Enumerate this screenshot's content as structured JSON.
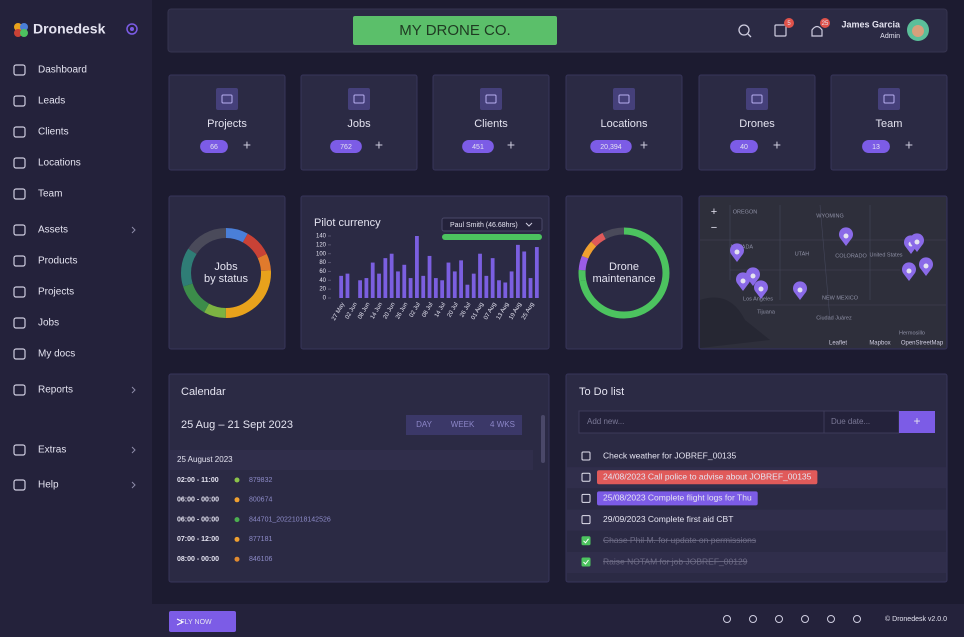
{
  "sidebar": {
    "brand": "Dronedesk",
    "menu": [
      {
        "label": "Dashboard"
      },
      {
        "label": "Leads"
      },
      {
        "label": "Clients"
      },
      {
        "label": "Locations"
      },
      {
        "label": "Team"
      },
      {
        "label": "Assets",
        "submenu": true
      },
      {
        "label": "Products"
      },
      {
        "label": "Projects"
      },
      {
        "label": "Jobs"
      },
      {
        "label": "My docs"
      },
      {
        "label": "Reports",
        "submenu": true
      },
      {
        "label": "Extras",
        "submenu": true
      },
      {
        "label": "Help",
        "submenu": true
      }
    ]
  },
  "header": {
    "company": "MY DRONE CO.",
    "user_name": "James Garcia",
    "user_role": "Admin",
    "badges": [
      5,
      25
    ]
  },
  "stats": [
    {
      "label": "Projects",
      "count": 66,
      "action": "+"
    },
    {
      "label": "Jobs",
      "count": 762,
      "action": "+"
    },
    {
      "label": "Clients",
      "count": 451,
      "action": "+"
    },
    {
      "label": "Locations",
      "count": 20394,
      "count_label": "20,394",
      "action": "+"
    },
    {
      "label": "Drones",
      "count": 40,
      "action": "+"
    },
    {
      "label": "Team",
      "count": 13,
      "action": "+"
    }
  ],
  "jobs_donut": {
    "type": "pie",
    "title": [
      "Jobs",
      "by status"
    ],
    "values": [
      8,
      10,
      6,
      26,
      8,
      12,
      14,
      16
    ],
    "colors": [
      "#4a7fd8",
      "#c94236",
      "#e07a2c",
      "#e8a21c",
      "#7cb342",
      "#3c8c4a",
      "#2f7d76",
      "#4a4a5a"
    ]
  },
  "pilot_currency": {
    "type": "bar",
    "title": "Pilot currency",
    "selector": "Paul Smith (46.68hrs)",
    "color": "#7b5fe0",
    "categories": [
      "27 May",
      null,
      "02 Jun",
      null,
      "08 Jun",
      null,
      "14 Jun",
      null,
      "20 Jun",
      null,
      "26 Jun",
      null,
      "02 Jul",
      null,
      "08 Jul",
      null,
      "14 Jul",
      null,
      "20 Jul",
      null,
      "26 Jul",
      null,
      "01 Aug",
      null,
      "07 Aug",
      null,
      "13 Aug",
      null,
      "19 Aug",
      null,
      "25 Aug",
      null
    ],
    "values": [
      50,
      55,
      0,
      40,
      45,
      80,
      55,
      90,
      100,
      60,
      75,
      45,
      140,
      50,
      95,
      45,
      40,
      80,
      60,
      85,
      30,
      55,
      100,
      50,
      90,
      40,
      35,
      60,
      120,
      105,
      45,
      115
    ],
    "ylim": [
      0,
      140
    ],
    "yticks": [
      0,
      20,
      40,
      60,
      80,
      100,
      120,
      140
    ]
  },
  "drone_maintenance": {
    "type": "pie",
    "title": [
      "Drone",
      "maintenance"
    ],
    "values": [
      72,
      4,
      5,
      6,
      5,
      8
    ],
    "colors": [
      "#4cc35f",
      "#4cc35f",
      "#9b5de5",
      "#f0a030",
      "#e05a5a",
      "#4a4a5a"
    ]
  },
  "map": {
    "zoom": [
      "+",
      "−"
    ],
    "labels": [
      "OREGON",
      "WYOMING",
      "NEVADA",
      "UTAH",
      "COLORADO",
      "United States",
      "Los Angeles",
      "NEW MEXICO",
      "Tijuana",
      "Ciudad Juárez",
      "Hermosillo"
    ],
    "attribution": [
      "Leaflet",
      "Mapbox",
      "OpenStreetMap"
    ]
  },
  "calendar": {
    "title": "Calendar",
    "range": "25 Aug – 21 Sept 2023",
    "views": [
      "DAY",
      "WEEK",
      "4 WKS"
    ],
    "day": "25 August 2023",
    "events": [
      {
        "time": "02:00 - 11:00",
        "ref": "879832",
        "color": "#8bc34a"
      },
      {
        "time": "06:00 - 00:00",
        "ref": "800674",
        "color": "#f0a030"
      },
      {
        "time": "06:00 - 00:00",
        "ref": "844701_20221018142526",
        "color": "#4caf50"
      },
      {
        "time": "07:00 - 12:00",
        "ref": "877181",
        "color": "#f0a030"
      },
      {
        "time": "08:00 - 00:00",
        "ref": "846106",
        "color": "#e08a30"
      }
    ]
  },
  "todo": {
    "title": "To Do list",
    "input_placeholder": "Add new...",
    "date_placeholder": "Due date...",
    "add": "+",
    "items": [
      {
        "text": "Check weather for JOBREF_00135",
        "done": false
      },
      {
        "text": "24/08/2023 Call police to advise about JOBREF_00135",
        "done": false,
        "highlight": "#e05a5a"
      },
      {
        "text": "25/08/2023 Complete flight logs for Thu",
        "done": false,
        "highlight": "#7c5ce6"
      },
      {
        "text": "29/09/2023 Complete first aid CBT",
        "done": false
      },
      {
        "text": "Chase Phil M. for update on permissions",
        "done": true
      },
      {
        "text": "Raise NOTAM for job JOBREF_00129",
        "done": true
      }
    ]
  },
  "footer": {
    "button": "FLY NOW",
    "version": "© Dronedesk v2.0.0"
  }
}
